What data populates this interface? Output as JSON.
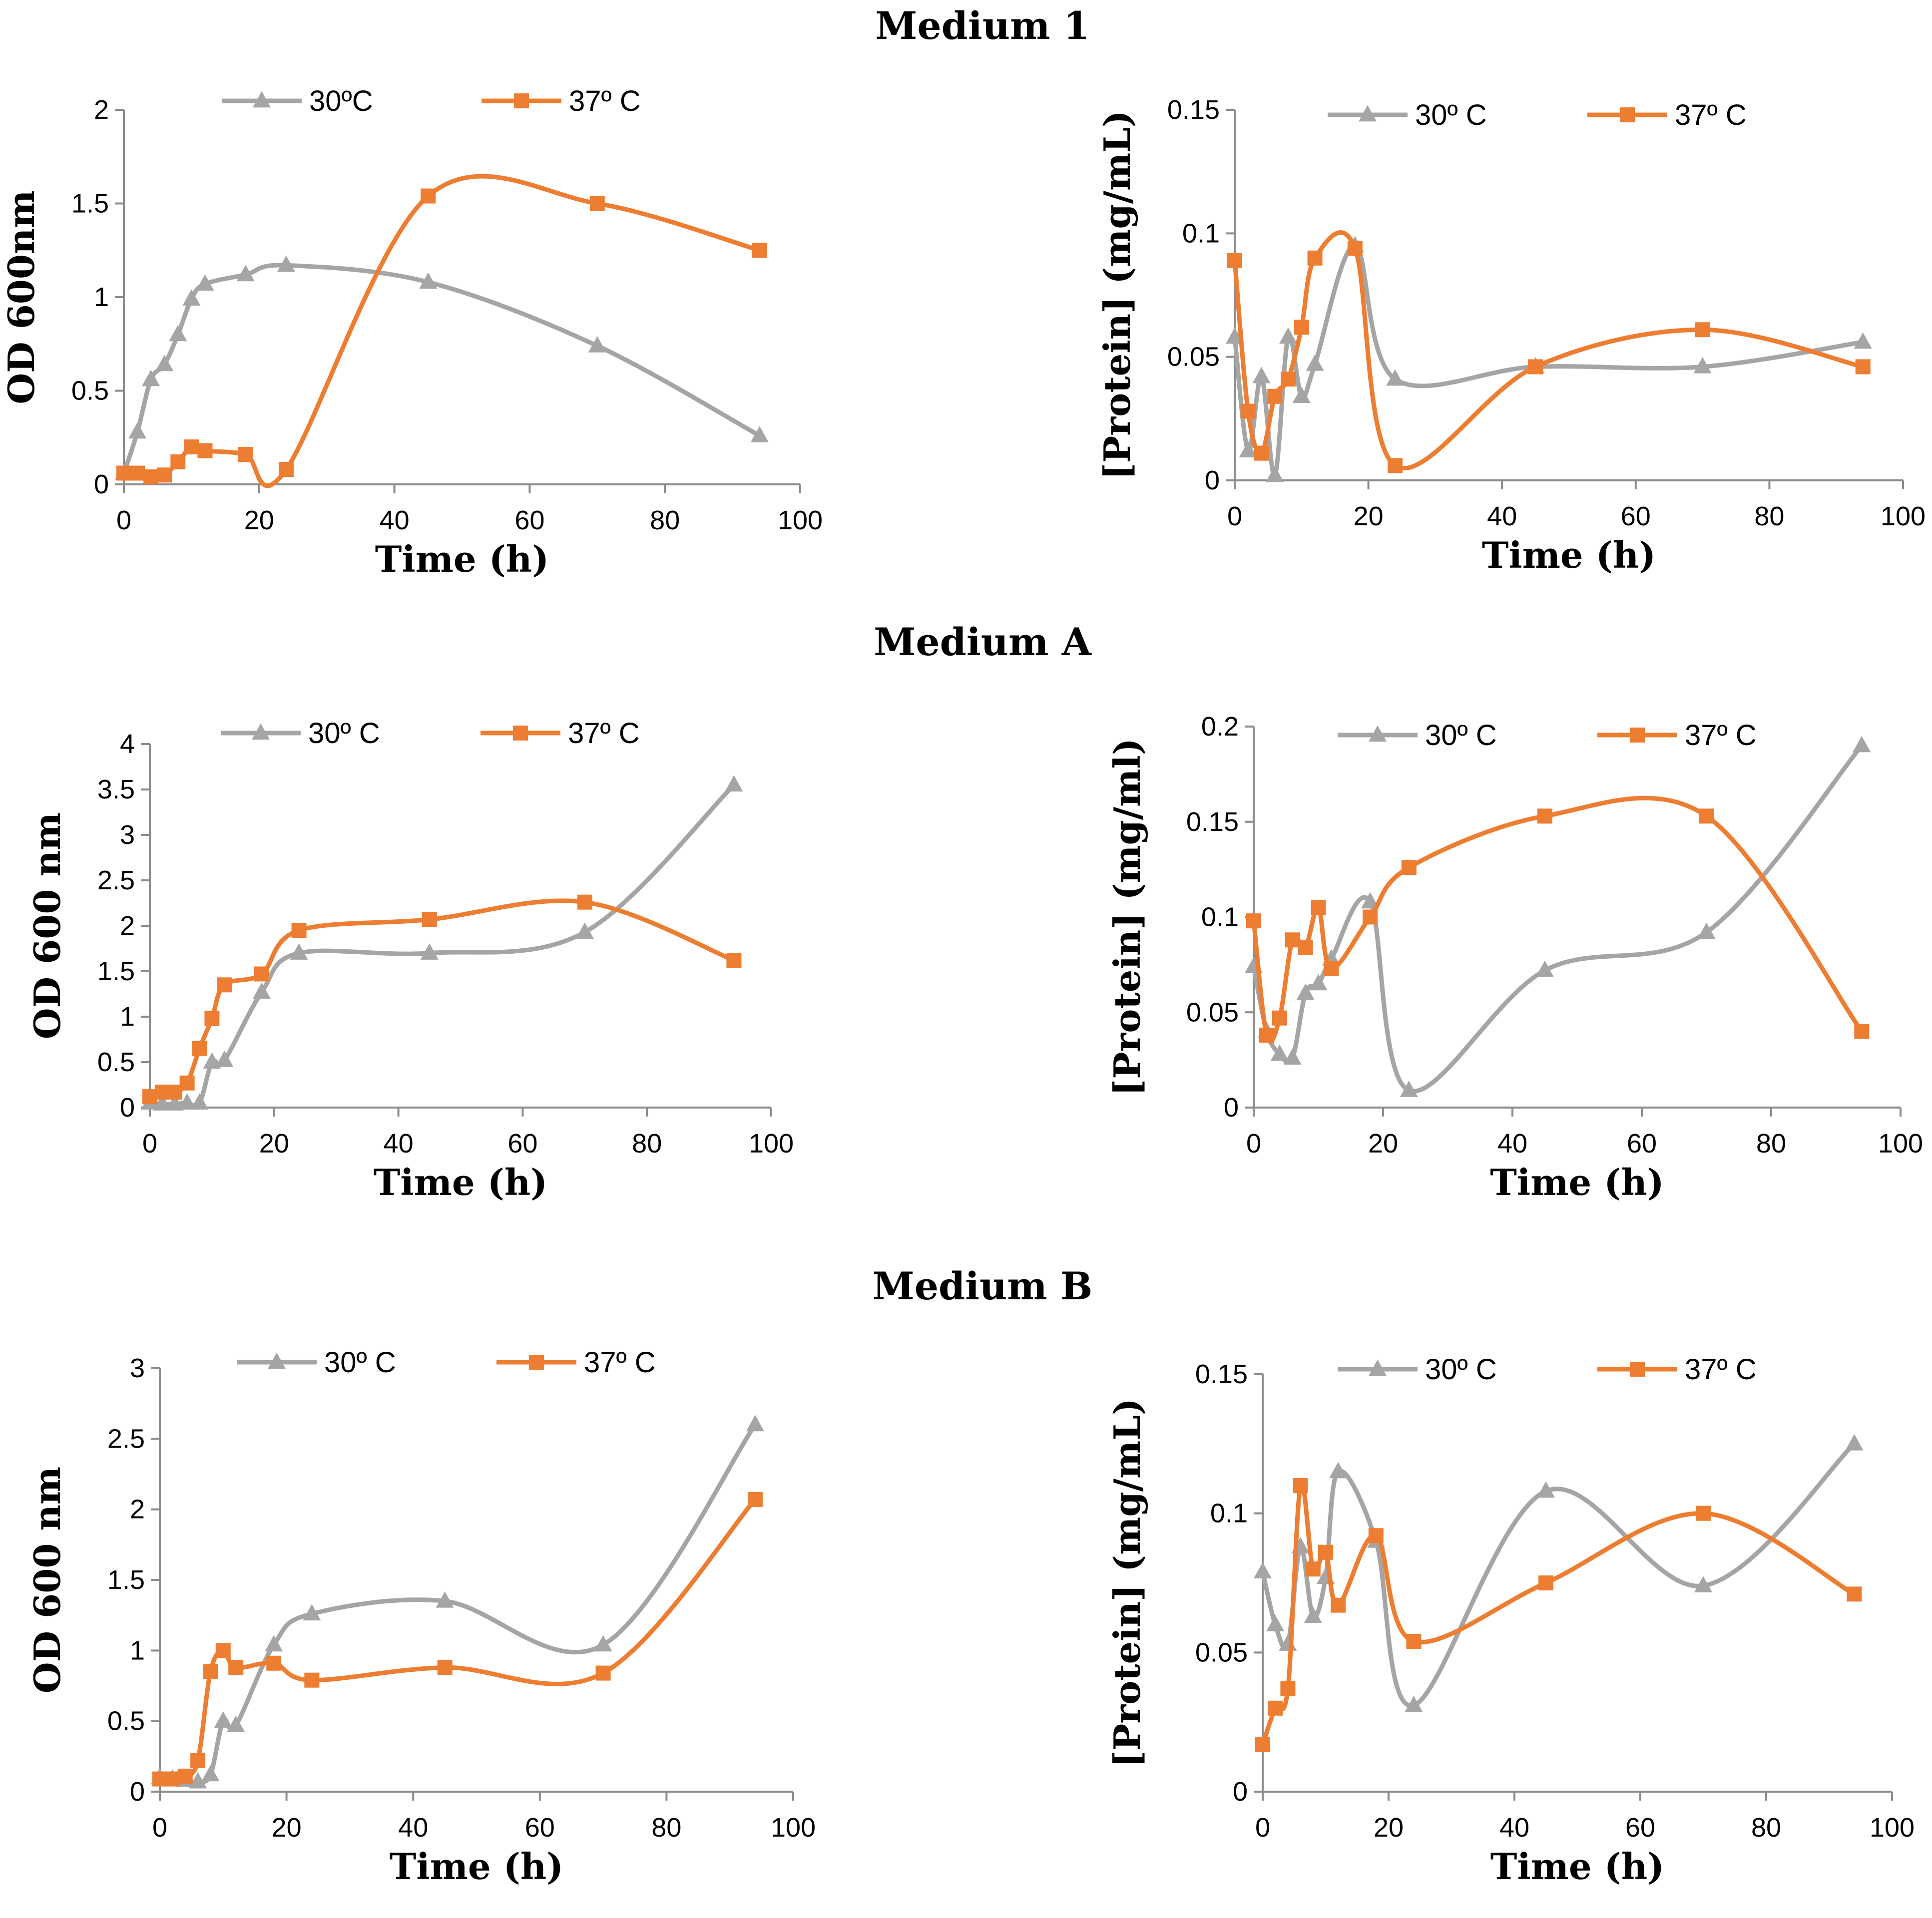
{
  "figure": {
    "section_titles": [
      "Medium 1",
      "Medium A",
      "Medium B"
    ],
    "colors": {
      "series_30": "#a5a5a5",
      "series_37": "#ed7d31",
      "axis": "#8c8c8c",
      "background": "#ffffff"
    }
  },
  "chart_data": [
    {
      "type": "line",
      "title": "Medium 1",
      "xlabel": "Time (h)",
      "ylabel": "OD 600nm",
      "xlim": [
        0,
        100
      ],
      "ylim": [
        0,
        2
      ],
      "x_ticks": [
        "0",
        "20",
        "40",
        "60",
        "80",
        "100"
      ],
      "y_ticks": [
        "0",
        "0.5",
        "1",
        "1.5",
        "2"
      ],
      "legend": "top-center",
      "series": [
        {
          "name": "30ºC",
          "marker": "triangle",
          "color": "#a5a5a5",
          "x": [
            0,
            2,
            4,
            6,
            8,
            10,
            12,
            18,
            24,
            45,
            70,
            94
          ],
          "y": [
            0.06,
            0.28,
            0.56,
            0.64,
            0.8,
            0.99,
            1.07,
            1.12,
            1.17,
            1.08,
            0.74,
            0.26
          ]
        },
        {
          "name": "37º C",
          "marker": "square",
          "color": "#ed7d31",
          "x": [
            0,
            2,
            4,
            6,
            8,
            10,
            12,
            18,
            24,
            45,
            70,
            94
          ],
          "y": [
            0.06,
            0.06,
            0.04,
            0.05,
            0.12,
            0.2,
            0.18,
            0.16,
            0.08,
            1.54,
            1.5,
            1.25
          ]
        }
      ]
    },
    {
      "type": "line",
      "title": "Medium 1",
      "xlabel": "Time (h)",
      "ylabel": "[Protein] (mg/mL)",
      "xlim": [
        0,
        100
      ],
      "ylim": [
        0,
        0.15
      ],
      "x_ticks": [
        "0",
        "20",
        "40",
        "60",
        "80",
        "100"
      ],
      "y_ticks": [
        "0",
        "0.05",
        "0.1",
        "0.15"
      ],
      "legend": "top-center",
      "series": [
        {
          "name": "30º C",
          "marker": "triangle",
          "color": "#a5a5a5",
          "x": [
            0,
            2,
            4,
            6,
            8,
            10,
            12,
            18,
            24,
            45,
            70,
            94
          ],
          "y": [
            0.058,
            0.012,
            0.042,
            0.002,
            0.058,
            0.034,
            0.047,
            0.095,
            0.041,
            0.046,
            0.046,
            0.056
          ]
        },
        {
          "name": "37º C",
          "marker": "square",
          "color": "#ed7d31",
          "x": [
            0,
            2,
            4,
            6,
            8,
            10,
            12,
            18,
            24,
            45,
            70,
            94
          ],
          "y": [
            0.089,
            0.028,
            0.011,
            0.034,
            0.041,
            0.062,
            0.09,
            0.094,
            0.006,
            0.046,
            0.061,
            0.046
          ]
        }
      ]
    },
    {
      "type": "line",
      "title": "Medium A",
      "xlabel": "Time (h)",
      "ylabel": "OD 600 nm",
      "xlim": [
        0,
        100
      ],
      "ylim": [
        0,
        4
      ],
      "x_ticks": [
        "0",
        "20",
        "40",
        "60",
        "80",
        "100"
      ],
      "y_ticks": [
        "0",
        "0.5",
        "1",
        "1.5",
        "2",
        "2.5",
        "3",
        "3.5",
        "4"
      ],
      "legend": "top-center",
      "series": [
        {
          "name": "30º C",
          "marker": "triangle",
          "color": "#a5a5a5",
          "x": [
            0,
            2,
            4,
            6,
            8,
            10,
            12,
            18,
            24,
            45,
            70,
            94
          ],
          "y": [
            0.05,
            0.04,
            0.04,
            0.05,
            0.05,
            0.5,
            0.52,
            1.27,
            1.7,
            1.7,
            1.93,
            3.55
          ]
        },
        {
          "name": "37º C",
          "marker": "square",
          "color": "#ed7d31",
          "x": [
            0,
            2,
            4,
            6,
            8,
            10,
            12,
            18,
            24,
            45,
            70,
            94
          ],
          "y": [
            0.12,
            0.17,
            0.17,
            0.27,
            0.65,
            0.98,
            1.35,
            1.47,
            1.95,
            2.07,
            2.26,
            1.62
          ]
        }
      ]
    },
    {
      "type": "line",
      "title": "Medium A",
      "xlabel": "Time (h)",
      "ylabel": "[Protein] (mg/ml)",
      "xlim": [
        0,
        100
      ],
      "ylim": [
        0,
        0.2
      ],
      "x_ticks": [
        "0",
        "20",
        "40",
        "60",
        "80",
        "100"
      ],
      "y_ticks": [
        "0",
        "0.05",
        "0.1",
        "0.15",
        "0.2"
      ],
      "legend": "top-center",
      "series": [
        {
          "name": "30º C",
          "marker": "triangle",
          "color": "#a5a5a5",
          "x": [
            0,
            2,
            4,
            6,
            8,
            10,
            12,
            18,
            24,
            45,
            70,
            94
          ],
          "y": [
            0.074,
            0.04,
            0.028,
            0.026,
            0.06,
            0.065,
            0.078,
            0.108,
            0.009,
            0.072,
            0.092,
            0.19
          ]
        },
        {
          "name": "37º C",
          "marker": "square",
          "color": "#ed7d31",
          "x": [
            0,
            2,
            4,
            6,
            8,
            10,
            12,
            18,
            24,
            45,
            70,
            94
          ],
          "y": [
            0.098,
            0.038,
            0.047,
            0.088,
            0.084,
            0.105,
            0.073,
            0.1,
            0.126,
            0.153,
            0.153,
            0.04
          ]
        }
      ]
    },
    {
      "type": "line",
      "title": "Medium B",
      "xlabel": "Time (h)",
      "ylabel": "OD 600 nm",
      "xlim": [
        0,
        100
      ],
      "ylim": [
        0,
        3
      ],
      "x_ticks": [
        "0",
        "20",
        "40",
        "60",
        "80",
        "100"
      ],
      "y_ticks": [
        "0",
        "0.5",
        "1",
        "1.5",
        "2",
        "2.5",
        "3"
      ],
      "legend": "top-center",
      "series": [
        {
          "name": "30º C",
          "marker": "triangle",
          "color": "#a5a5a5",
          "x": [
            0,
            2,
            4,
            6,
            8,
            10,
            12,
            18,
            24,
            45,
            70,
            94
          ],
          "y": [
            0.1,
            0.09,
            0.08,
            0.07,
            0.12,
            0.5,
            0.47,
            1.04,
            1.26,
            1.35,
            1.04,
            2.6
          ]
        },
        {
          "name": "37º C",
          "marker": "square",
          "color": "#ed7d31",
          "x": [
            0,
            2,
            4,
            6,
            8,
            10,
            12,
            18,
            24,
            45,
            70,
            94
          ],
          "y": [
            0.09,
            0.09,
            0.11,
            0.22,
            0.85,
            1.0,
            0.88,
            0.91,
            0.79,
            0.88,
            0.84,
            2.07
          ]
        }
      ]
    },
    {
      "type": "line",
      "title": "Medium B",
      "xlabel": "Time (h)",
      "ylabel": "[Protein] (mg/mL)",
      "xlim": [
        0,
        100
      ],
      "ylim": [
        0,
        0.15
      ],
      "x_ticks": [
        "0",
        "20",
        "40",
        "60",
        "80",
        "100"
      ],
      "y_ticks": [
        "0",
        "0.05",
        "0.1",
        "0.15"
      ],
      "legend": "top-center",
      "series": [
        {
          "name": "30º C",
          "marker": "triangle",
          "color": "#a5a5a5",
          "x": [
            0,
            2,
            4,
            6,
            8,
            10,
            12,
            18,
            24,
            45,
            70,
            94
          ],
          "y": [
            0.079,
            0.06,
            0.053,
            0.088,
            0.063,
            0.077,
            0.115,
            0.09,
            0.031,
            0.108,
            0.074,
            0.125
          ]
        },
        {
          "name": "37º C",
          "marker": "square",
          "color": "#ed7d31",
          "x": [
            0,
            2,
            4,
            6,
            8,
            10,
            12,
            18,
            24,
            45,
            70,
            94
          ],
          "y": [
            0.017,
            0.03,
            0.037,
            0.11,
            0.08,
            0.086,
            0.067,
            0.092,
            0.054,
            0.075,
            0.1,
            0.071
          ]
        }
      ]
    }
  ]
}
